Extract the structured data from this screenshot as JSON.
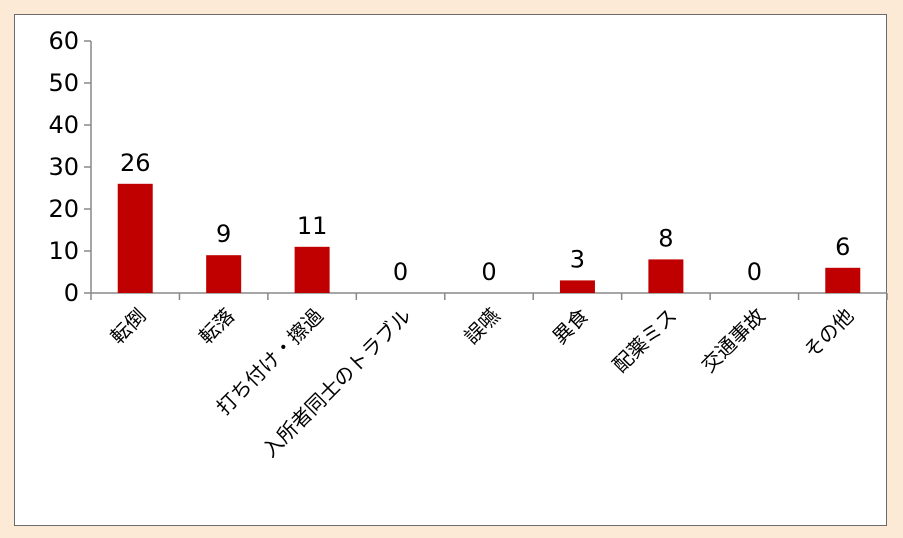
{
  "chart_data": {
    "type": "bar",
    "categories": [
      "転倒",
      "転落",
      "打ち付け・擦過",
      "入所者同士のトラブル",
      "誤嚥",
      "異食",
      "配薬ミス",
      "交通事故",
      "その他"
    ],
    "values": [
      26,
      9,
      11,
      0,
      0,
      3,
      8,
      0,
      6
    ],
    "data_labels": [
      "26",
      "9",
      "11",
      "0",
      "0",
      "3",
      "8",
      "0",
      "6"
    ],
    "ylim": [
      0,
      60
    ],
    "yticks": [
      0,
      10,
      20,
      30,
      40,
      50,
      60
    ],
    "ytick_labels": [
      "0",
      "10",
      "20",
      "30",
      "40",
      "50",
      "60"
    ],
    "grid": false,
    "legend": "none",
    "bar_color": "#c00000",
    "axis_color": "#888888"
  }
}
